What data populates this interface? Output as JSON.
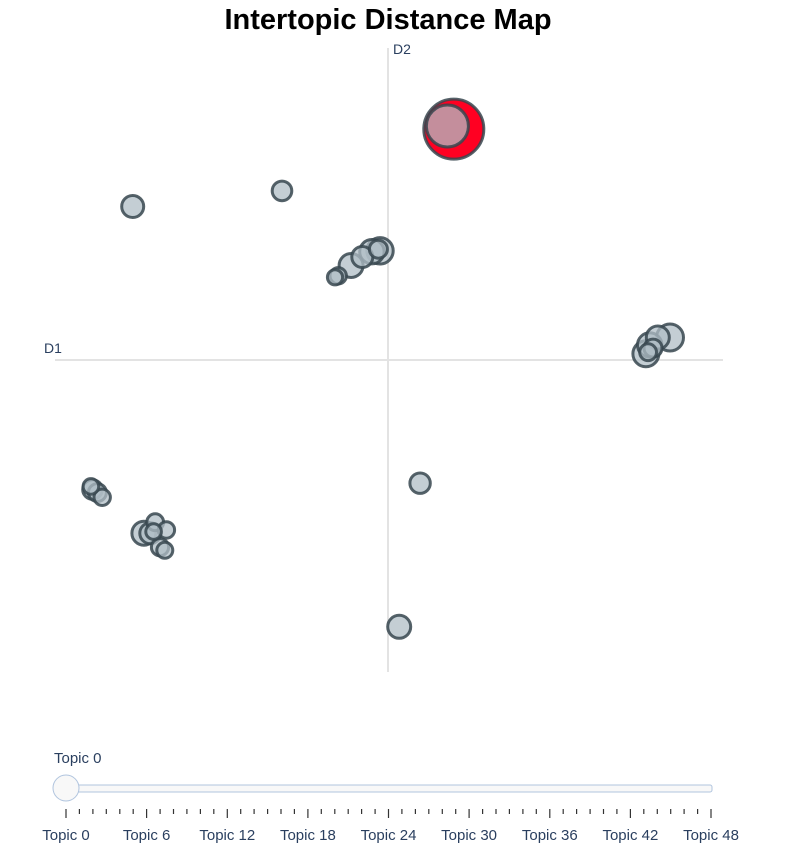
{
  "title": "Intertopic Distance Map",
  "chart_data": {
    "type": "scatter",
    "title": "Intertopic Distance Map",
    "xlabel": "D1",
    "ylabel": "D2",
    "xlim": [
      -10.4,
      10.4
    ],
    "ylim": [
      -10.0,
      10.0
    ],
    "marker_fill": "#b0bec5",
    "marker_line": "#37474f",
    "highlight_color": "#ff0022",
    "highlighted_topic": 0,
    "points": [
      {
        "topic": 0,
        "x": 2.05,
        "y": 7.4,
        "size": 2.4
      },
      {
        "topic": 1,
        "x": 1.85,
        "y": 7.5,
        "size": 1.5
      },
      {
        "topic": 2,
        "x": -7.95,
        "y": 4.92,
        "size": 0.5
      },
      {
        "topic": 3,
        "x": -3.3,
        "y": 5.42,
        "size": 0.38
      },
      {
        "topic": 4,
        "x": -0.25,
        "y": 3.5,
        "size": 0.72
      },
      {
        "topic": 5,
        "x": -0.5,
        "y": 3.47,
        "size": 0.62
      },
      {
        "topic": 6,
        "x": -0.8,
        "y": 3.3,
        "size": 0.45
      },
      {
        "topic": 7,
        "x": -1.15,
        "y": 3.03,
        "size": 0.6
      },
      {
        "topic": 8,
        "x": -1.55,
        "y": 2.7,
        "size": 0.22
      },
      {
        "topic": 9,
        "x": -1.65,
        "y": 2.65,
        "size": 0.16
      },
      {
        "topic": 10,
        "x": -0.3,
        "y": 3.55,
        "size": 0.3
      },
      {
        "topic": 11,
        "x": 8.78,
        "y": 0.72,
        "size": 0.75
      },
      {
        "topic": 12,
        "x": 8.4,
        "y": 0.72,
        "size": 0.55
      },
      {
        "topic": 13,
        "x": 8.15,
        "y": 0.48,
        "size": 0.62
      },
      {
        "topic": 14,
        "x": 8.03,
        "y": 0.2,
        "size": 0.7
      },
      {
        "topic": 15,
        "x": 8.25,
        "y": 0.38,
        "size": 0.3
      },
      {
        "topic": 16,
        "x": 8.1,
        "y": 0.25,
        "size": 0.24
      },
      {
        "topic": 17,
        "x": 1.0,
        "y": -3.95,
        "size": 0.42
      },
      {
        "topic": 18,
        "x": 0.35,
        "y": -8.55,
        "size": 0.55
      },
      {
        "topic": 19,
        "x": -9.2,
        "y": -4.15,
        "size": 0.38
      },
      {
        "topic": 20,
        "x": -9.05,
        "y": -4.25,
        "size": 0.3
      },
      {
        "topic": 21,
        "x": -8.9,
        "y": -4.4,
        "size": 0.22
      },
      {
        "topic": 22,
        "x": -9.25,
        "y": -4.05,
        "size": 0.18
      },
      {
        "topic": 23,
        "x": -7.6,
        "y": -5.55,
        "size": 0.6
      },
      {
        "topic": 24,
        "x": -7.4,
        "y": -5.55,
        "size": 0.45
      },
      {
        "topic": 25,
        "x": -7.25,
        "y": -5.2,
        "size": 0.24
      },
      {
        "topic": 26,
        "x": -6.9,
        "y": -5.45,
        "size": 0.22
      },
      {
        "topic": 27,
        "x": -7.1,
        "y": -6.0,
        "size": 0.26
      },
      {
        "topic": 28,
        "x": -6.95,
        "y": -6.1,
        "size": 0.2
      },
      {
        "topic": 29,
        "x": -7.3,
        "y": -5.5,
        "size": 0.18
      }
    ]
  },
  "slider": {
    "current_label": "Topic 0",
    "min": 0,
    "max": 48,
    "value": 0,
    "tick_labels": [
      "Topic 0",
      "Topic 6",
      "Topic 12",
      "Topic 18",
      "Topic 24",
      "Topic 30",
      "Topic 36",
      "Topic 42",
      "Topic 48"
    ],
    "track_color": "#b0c4de",
    "handle_color": "#f8f8f8"
  }
}
